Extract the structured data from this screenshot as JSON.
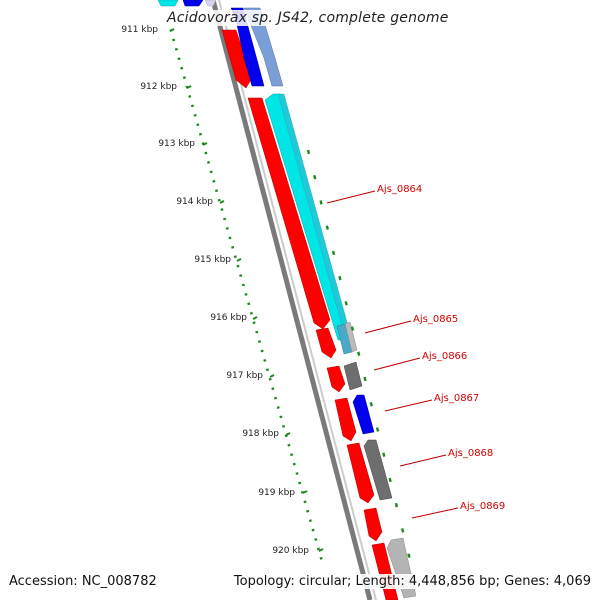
{
  "map": {
    "title": "Acidovorax sp. JS42, complete genome",
    "accession": "Accession: NC_008782",
    "summary": "Topology: circular; Length: 4,448,856 bp; Genes: 4,069",
    "tick_labels": [
      "911 kbp",
      "912 kbp",
      "913 kbp",
      "914 kbp",
      "915 kbp",
      "916 kbp",
      "917 kbp",
      "918 kbp",
      "919 kbp",
      "920 kbp"
    ],
    "gene_labels": [
      "Ajs_0864",
      "Ajs_0865",
      "Ajs_0866",
      "Ajs_0867",
      "Ajs_0868",
      "Ajs_0869"
    ]
  },
  "colors": {
    "forward_cds": "#ff0000",
    "reverse_cds_cyan": "#00e5e5",
    "reverse_cds_blue": "#0000ee",
    "reverse_cds_gray": "#6e6e6e",
    "backbone": "#777777",
    "scale_dots": "#1a8a1a",
    "gene_label": "#d40000"
  }
}
